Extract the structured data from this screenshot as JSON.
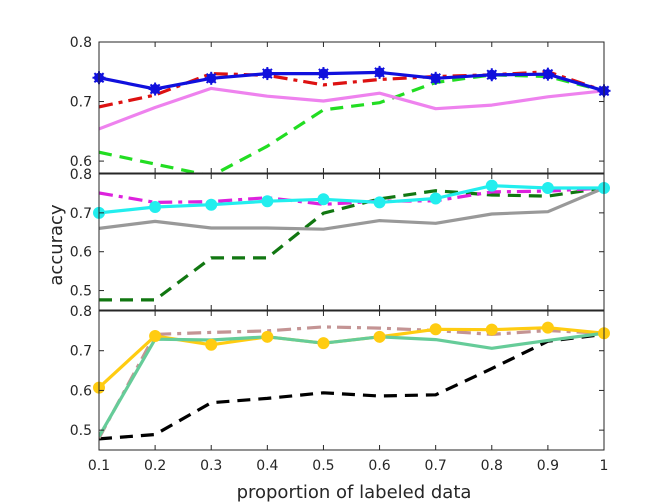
{
  "chart_data": [
    {
      "type": "line",
      "panel": "top",
      "xlim": [
        0.1,
        1
      ],
      "ylim": [
        0.58,
        0.8
      ],
      "yticks": [
        "0.6",
        "0.7",
        "0.8"
      ],
      "x": [
        0.1,
        0.2,
        0.3,
        0.4,
        0.5,
        0.6,
        0.7,
        0.8,
        0.9,
        1.0
      ],
      "series": [
        {
          "name": "green-dashed",
          "color": "#22dd22",
          "style": "dashed",
          "marker": "none",
          "values": [
            0.615,
            0.595,
            0.575,
            0.625,
            0.686,
            0.698,
            0.732,
            0.745,
            0.742,
            0.718
          ]
        },
        {
          "name": "violet-solid",
          "color": "#ee82ee",
          "style": "solid",
          "marker": "none",
          "values": [
            0.654,
            0.69,
            0.722,
            0.709,
            0.701,
            0.714,
            0.688,
            0.694,
            0.708,
            0.718
          ]
        },
        {
          "name": "red-dashdot",
          "color": "#dd1111",
          "style": "dashdot",
          "marker": "none",
          "values": [
            0.691,
            0.711,
            0.747,
            0.744,
            0.728,
            0.737,
            0.742,
            0.745,
            0.75,
            0.718
          ]
        },
        {
          "name": "blue-star",
          "color": "#1010dd",
          "style": "solid",
          "marker": "star",
          "values": [
            0.74,
            0.721,
            0.739,
            0.747,
            0.747,
            0.749,
            0.739,
            0.745,
            0.746,
            0.718
          ]
        }
      ]
    },
    {
      "type": "line",
      "panel": "middle",
      "xlim": [
        0.1,
        1
      ],
      "ylim": [
        0.45,
        0.8
      ],
      "yticks": [
        "0.5",
        "0.6",
        "0.7",
        "0.8"
      ],
      "x": [
        0.1,
        0.2,
        0.3,
        0.4,
        0.5,
        0.6,
        0.7,
        0.8,
        0.9,
        1.0
      ],
      "series": [
        {
          "name": "darkgreen-dashed",
          "color": "#117711",
          "style": "dashed",
          "marker": "none",
          "values": [
            0.476,
            0.476,
            0.584,
            0.584,
            0.699,
            0.736,
            0.757,
            0.746,
            0.743,
            0.764
          ]
        },
        {
          "name": "gray-solid",
          "color": "#999999",
          "style": "solid",
          "marker": "none",
          "values": [
            0.66,
            0.678,
            0.661,
            0.661,
            0.658,
            0.68,
            0.673,
            0.697,
            0.703,
            0.764
          ]
        },
        {
          "name": "magenta-dashdot",
          "color": "#dd22dd",
          "style": "dashdot",
          "marker": "none",
          "values": [
            0.751,
            0.727,
            0.729,
            0.739,
            0.722,
            0.73,
            0.731,
            0.754,
            0.756,
            0.764
          ]
        },
        {
          "name": "cyan-circle",
          "color": "#22eeee",
          "style": "solid",
          "marker": "circle",
          "values": [
            0.7,
            0.715,
            0.721,
            0.73,
            0.735,
            0.727,
            0.737,
            0.77,
            0.764,
            0.764
          ]
        }
      ]
    },
    {
      "type": "line",
      "panel": "bottom",
      "xlim": [
        0.1,
        1
      ],
      "ylim": [
        0.45,
        0.8
      ],
      "yticks": [
        "0.5",
        "0.6",
        "0.7",
        "0.8"
      ],
      "x": [
        0.1,
        0.2,
        0.3,
        0.4,
        0.5,
        0.6,
        0.7,
        0.8,
        0.9,
        1.0
      ],
      "series": [
        {
          "name": "black-dashed",
          "color": "#000000",
          "style": "dashed",
          "marker": "none",
          "values": [
            0.478,
            0.489,
            0.569,
            0.58,
            0.594,
            0.586,
            0.589,
            0.655,
            0.724,
            0.741
          ]
        },
        {
          "name": "rosybrown-dashdot",
          "color": "#c49494",
          "style": "dashdot",
          "marker": "none",
          "values": [
            0.48,
            0.741,
            0.746,
            0.75,
            0.76,
            0.757,
            0.751,
            0.741,
            0.751,
            0.744
          ]
        },
        {
          "name": "gold-circle",
          "color": "#ffcc11",
          "style": "solid",
          "marker": "circle",
          "values": [
            0.607,
            0.737,
            0.715,
            0.735,
            0.719,
            0.735,
            0.754,
            0.753,
            0.758,
            0.744
          ]
        },
        {
          "name": "teal-solid",
          "color": "#66cc99",
          "style": "solid",
          "marker": "none",
          "values": [
            0.484,
            0.729,
            0.727,
            0.735,
            0.719,
            0.735,
            0.728,
            0.706,
            0.726,
            0.744
          ]
        }
      ]
    }
  ],
  "x_ticks": [
    "0.1",
    "0.2",
    "0.3",
    "0.4",
    "0.5",
    "0.6",
    "0.7",
    "0.8",
    "0.9",
    "1"
  ],
  "xlabel": "proportion of labeled data",
  "ylabel": "accuracy"
}
